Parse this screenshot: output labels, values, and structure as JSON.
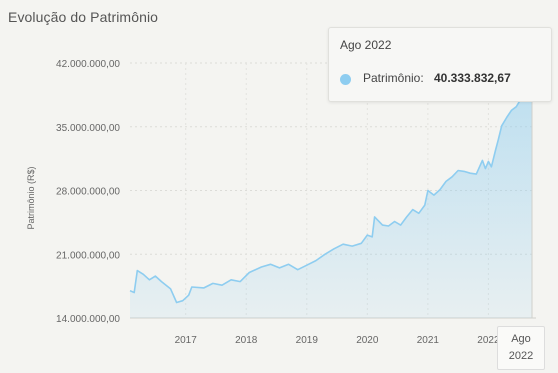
{
  "chart_data": {
    "type": "area",
    "title": "Evolução do Patrimônio",
    "ylabel": "Patrimônio (R$)",
    "ylim": [
      14000000,
      42000000
    ],
    "yticks": [
      "14.000.000,00",
      "21.000.000,00",
      "28.000.000,00",
      "35.000.000,00",
      "42.000.000,00"
    ],
    "ytick_values": [
      14000000,
      21000000,
      28000000,
      35000000,
      42000000
    ],
    "xticks": [
      "2017",
      "2018",
      "2019",
      "2020",
      "2021",
      "2022"
    ],
    "xtick_values": [
      2017,
      2018,
      2019,
      2020,
      2021,
      2022
    ],
    "xlim": [
      2016.08,
      2022.72
    ],
    "grid": true,
    "color": "#8ecdf0",
    "series": [
      {
        "values": [
          [
            2016.08,
            17000000
          ],
          [
            2016.15,
            16800000
          ],
          [
            2016.2,
            19200000
          ],
          [
            2016.3,
            18800000
          ],
          [
            2016.4,
            18200000
          ],
          [
            2016.5,
            18600000
          ],
          [
            2016.6,
            18000000
          ],
          [
            2016.75,
            17200000
          ],
          [
            2016.85,
            15700000
          ],
          [
            2016.95,
            15900000
          ],
          [
            2017.05,
            16500000
          ],
          [
            2017.1,
            17400000
          ],
          [
            2017.3,
            17300000
          ],
          [
            2017.45,
            17800000
          ],
          [
            2017.6,
            17600000
          ],
          [
            2017.75,
            18200000
          ],
          [
            2017.9,
            18000000
          ],
          [
            2018.05,
            19000000
          ],
          [
            2018.25,
            19600000
          ],
          [
            2018.4,
            19900000
          ],
          [
            2018.55,
            19500000
          ],
          [
            2018.7,
            19900000
          ],
          [
            2018.85,
            19300000
          ],
          [
            2019.0,
            19800000
          ],
          [
            2019.15,
            20300000
          ],
          [
            2019.3,
            21000000
          ],
          [
            2019.45,
            21600000
          ],
          [
            2019.6,
            22100000
          ],
          [
            2019.75,
            21900000
          ],
          [
            2019.9,
            22200000
          ],
          [
            2020.0,
            23100000
          ],
          [
            2020.08,
            22900000
          ],
          [
            2020.12,
            25100000
          ],
          [
            2020.25,
            24200000
          ],
          [
            2020.35,
            24100000
          ],
          [
            2020.45,
            24600000
          ],
          [
            2020.55,
            24200000
          ],
          [
            2020.65,
            25100000
          ],
          [
            2020.75,
            25900000
          ],
          [
            2020.85,
            25500000
          ],
          [
            2020.95,
            26400000
          ],
          [
            2021.0,
            28000000
          ],
          [
            2021.1,
            27500000
          ],
          [
            2021.2,
            28100000
          ],
          [
            2021.3,
            29000000
          ],
          [
            2021.4,
            29500000
          ],
          [
            2021.5,
            30200000
          ],
          [
            2021.6,
            30100000
          ],
          [
            2021.7,
            29900000
          ],
          [
            2021.8,
            29800000
          ],
          [
            2021.9,
            31300000
          ],
          [
            2021.95,
            30400000
          ],
          [
            2022.0,
            31200000
          ],
          [
            2022.05,
            30600000
          ],
          [
            2022.12,
            32500000
          ],
          [
            2022.16,
            33500000
          ],
          [
            2022.22,
            35100000
          ],
          [
            2022.3,
            36000000
          ],
          [
            2022.38,
            36800000
          ],
          [
            2022.46,
            37200000
          ],
          [
            2022.55,
            38200000
          ],
          [
            2022.64,
            39000000
          ],
          [
            2022.72,
            40333832.67
          ]
        ]
      }
    ]
  },
  "tooltip": {
    "date": "Ago 2022",
    "series_label": "Patrimônio:",
    "value": "40.333.832,67"
  },
  "x_cursor": {
    "line1": "Ago",
    "line2": "2022"
  }
}
